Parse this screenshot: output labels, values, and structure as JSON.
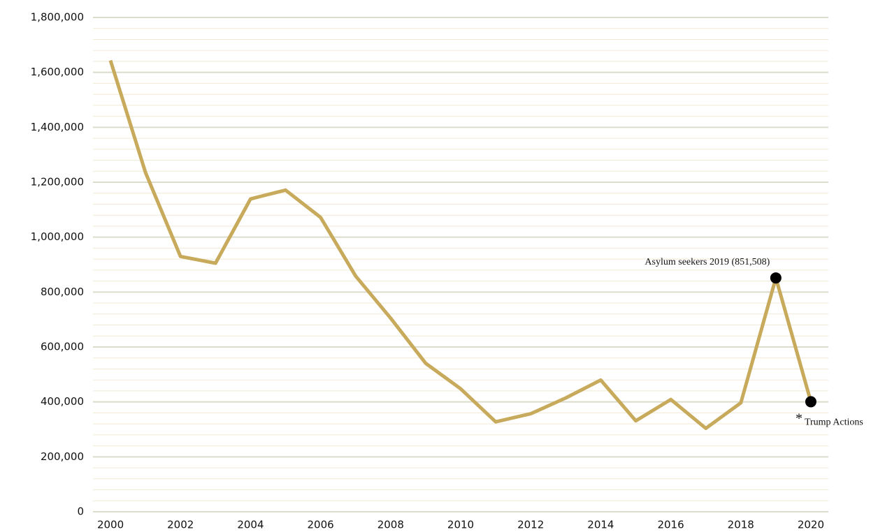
{
  "chart_data": {
    "type": "line",
    "x": [
      2000,
      2001,
      2002,
      2003,
      2004,
      2005,
      2006,
      2007,
      2008,
      2009,
      2010,
      2011,
      2012,
      2013,
      2014,
      2015,
      2016,
      2017,
      2018,
      2019,
      2020
    ],
    "values": [
      1643679,
      1235718,
      929809,
      905065,
      1139282,
      1171396,
      1071972,
      858638,
      705005,
      540865,
      447731,
      327577,
      356873,
      414397,
      479371,
      331333,
      408870,
      303916,
      396579,
      851508,
      400651
    ],
    "color": "#c8aa5c",
    "xlim": [
      1999.5,
      2020.5
    ],
    "xticks": [
      2000,
      2002,
      2004,
      2006,
      2008,
      2010,
      2012,
      2014,
      2016,
      2018,
      2020
    ],
    "ylim": [
      0,
      1800000
    ],
    "yticks": [
      0,
      {
        "value": 200000,
        "label": "200,000"
      },
      {
        "value": 400000,
        "label": "400,000"
      },
      {
        "value": 600000,
        "label": "600,000"
      },
      {
        "value": 800000,
        "label": "800,000"
      },
      {
        "value": 1000000,
        "label": "1,000,000"
      },
      {
        "value": 1200000,
        "label": "1,200,000"
      },
      {
        "value": 1400000,
        "label": "1,400,000"
      },
      {
        "value": 1600000,
        "label": "1,600,000"
      },
      {
        "value": 1800000,
        "label": "1,800,000"
      }
    ],
    "grid": true,
    "annotations": [
      {
        "label": "Asylum seekers 2019 (851,508)",
        "x": 2019
      },
      {
        "marker": "*",
        "label": "Trump Actions",
        "x": 2020
      }
    ]
  }
}
